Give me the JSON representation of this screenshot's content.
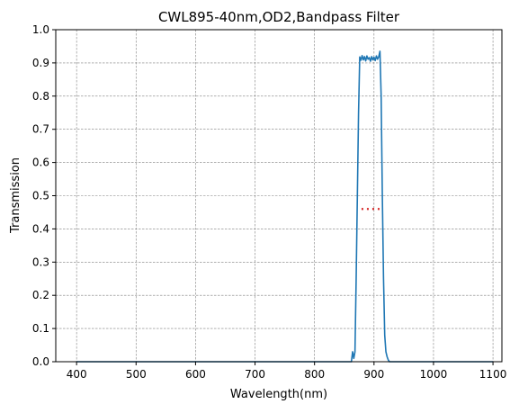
{
  "chart_data": {
    "type": "line",
    "title": "CWL895-40nm,OD2,Bandpass Filter",
    "xlabel": "Wavelength(nm)",
    "ylabel": "Transmission",
    "xlim": [
      365,
      1115
    ],
    "ylim": [
      0,
      1.0
    ],
    "xticks": [
      400,
      500,
      600,
      700,
      800,
      900,
      1000,
      1100
    ],
    "xtick_labels": [
      "400",
      "500",
      "600",
      "700",
      "800",
      "900",
      "1000",
      "1100"
    ],
    "yticks": [
      0.0,
      0.1,
      0.2,
      0.3,
      0.4,
      0.5,
      0.6,
      0.7,
      0.8,
      0.9,
      1.0
    ],
    "ytick_labels": [
      "0.0",
      "0.1",
      "0.2",
      "0.3",
      "0.4",
      "0.5",
      "0.6",
      "0.7",
      "0.8",
      "0.9",
      "1.0"
    ],
    "grid": true,
    "series": [
      {
        "color": "#1f77b4",
        "style": "solid",
        "x": [
          400,
          500,
          600,
          700,
          800,
          850,
          862,
          864,
          866,
          868,
          870,
          872,
          874,
          876,
          878,
          880,
          882,
          884,
          886,
          888,
          890,
          892,
          894,
          896,
          898,
          900,
          902,
          904,
          906,
          908,
          910,
          912,
          914,
          916,
          918,
          920,
          922,
          924,
          926,
          930,
          950,
          1000,
          1100
        ],
        "y": [
          0.0,
          0.0,
          0.0,
          0.0,
          0.0,
          0.0,
          0.0,
          0.03,
          0.01,
          0.03,
          0.25,
          0.5,
          0.75,
          0.918,
          0.908,
          0.922,
          0.909,
          0.919,
          0.906,
          0.921,
          0.911,
          0.916,
          0.905,
          0.919,
          0.909,
          0.917,
          0.907,
          0.921,
          0.911,
          0.919,
          0.935,
          0.8,
          0.5,
          0.25,
          0.08,
          0.03,
          0.015,
          0.005,
          0.0,
          0.0,
          0.0,
          0.0,
          0.0
        ]
      },
      {
        "color": "#d62728",
        "style": "dotted",
        "x": [
          879,
          910
        ],
        "y": [
          0.46,
          0.46
        ]
      }
    ]
  }
}
